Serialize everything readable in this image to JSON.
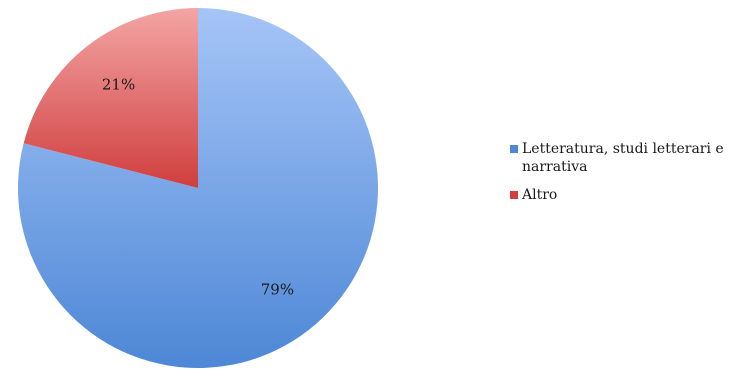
{
  "chart_data": {
    "type": "pie",
    "title": "",
    "slices": [
      {
        "label": "Letteratura, studi letterari e narrativa",
        "value": 79,
        "display": "79%",
        "color": "#4d87d6",
        "color_light": "#a6c5f7"
      },
      {
        "label": "Altro",
        "value": 21,
        "display": "21%",
        "color": "#d03e3e",
        "color_light": "#f4a5a5"
      }
    ],
    "start_angle_deg": 0,
    "direction": "clockwise",
    "legend": {
      "position": "right"
    }
  }
}
